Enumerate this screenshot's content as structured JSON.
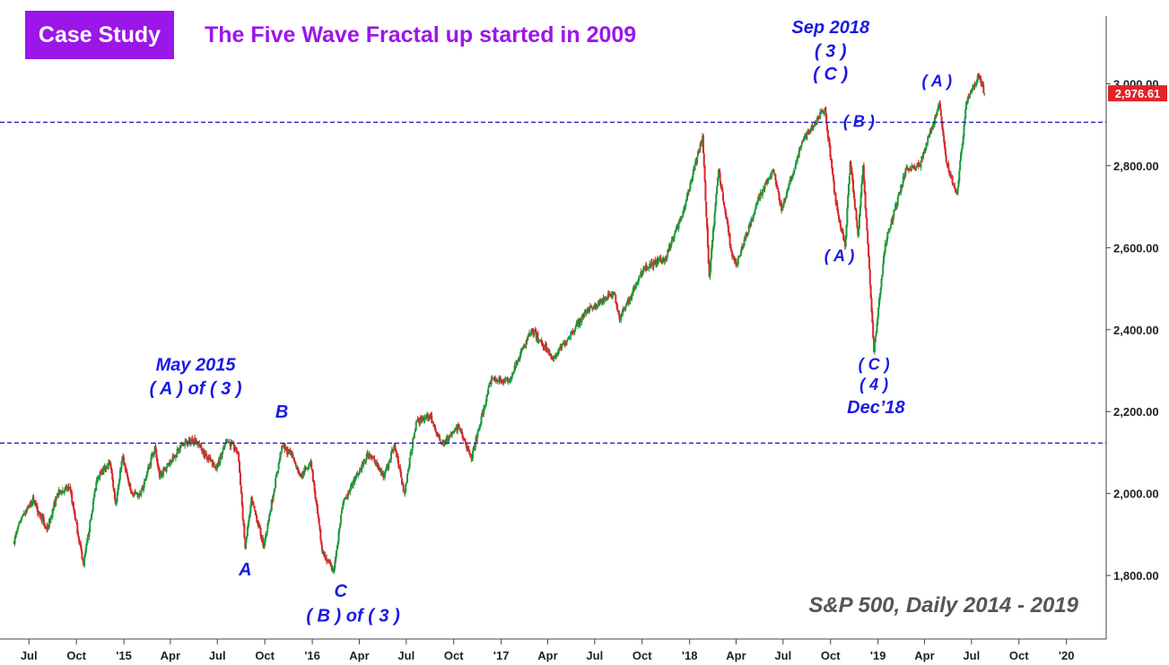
{
  "header": {
    "badge": "Case Study",
    "title": "The Five Wave Fractal up started in 2009"
  },
  "caption": "S&P 500, Daily 2014 - 2019",
  "last_price": "2,976.61",
  "colors": {
    "up": "#1a9a3a",
    "down": "#d8262a",
    "wave_label": "#1a1ae6",
    "accent": "#9b16e8",
    "price_tag": "#e0242a",
    "hline": "#2020c0"
  },
  "chart_data": {
    "type": "line",
    "title": "",
    "series": [
      {
        "values_points": [
          [
            "2014-06-01",
            1880
          ],
          [
            "2014-06-20",
            1950
          ],
          [
            "2014-07-10",
            1985
          ],
          [
            "2014-08-05",
            1910
          ],
          [
            "2014-08-25",
            2000
          ],
          [
            "2014-09-18",
            2015
          ],
          [
            "2014-10-15",
            1825
          ],
          [
            "2014-11-10",
            2040
          ],
          [
            "2014-12-05",
            2075
          ],
          [
            "2014-12-16",
            1975
          ],
          [
            "2014-12-29",
            2090
          ],
          [
            "2015-01-15",
            2000
          ],
          [
            "2015-02-02",
            1995
          ],
          [
            "2015-03-02",
            2115
          ],
          [
            "2015-03-11",
            2040
          ],
          [
            "2015-04-01",
            2080
          ],
          [
            "2015-04-25",
            2120
          ],
          [
            "2015-05-20",
            2132
          ],
          [
            "2015-06-10",
            2090
          ],
          [
            "2015-06-29",
            2060
          ],
          [
            "2015-07-20",
            2130
          ],
          [
            "2015-08-10",
            2100
          ],
          [
            "2015-08-24",
            1867
          ],
          [
            "2015-09-05",
            1990
          ],
          [
            "2015-09-29",
            1872
          ],
          [
            "2015-11-03",
            2116
          ],
          [
            "2015-11-25",
            2090
          ],
          [
            "2015-12-10",
            2040
          ],
          [
            "2015-12-29",
            2080
          ],
          [
            "2016-01-20",
            1860
          ],
          [
            "2016-02-11",
            1810
          ],
          [
            "2016-03-01",
            1980
          ],
          [
            "2016-04-20",
            2100
          ],
          [
            "2016-05-19",
            2040
          ],
          [
            "2016-06-08",
            2120
          ],
          [
            "2016-06-27",
            2000
          ],
          [
            "2016-07-20",
            2175
          ],
          [
            "2016-08-15",
            2190
          ],
          [
            "2016-09-09",
            2120
          ],
          [
            "2016-10-10",
            2165
          ],
          [
            "2016-11-04",
            2085
          ],
          [
            "2016-12-13",
            2280
          ],
          [
            "2017-01-15",
            2275
          ],
          [
            "2017-03-01",
            2400
          ],
          [
            "2017-04-13",
            2330
          ],
          [
            "2017-06-15",
            2445
          ],
          [
            "2017-08-08",
            2490
          ],
          [
            "2017-08-18",
            2425
          ],
          [
            "2017-10-05",
            2550
          ],
          [
            "2017-11-15",
            2575
          ],
          [
            "2017-12-20",
            2690
          ],
          [
            "2018-01-26",
            2872
          ],
          [
            "2018-02-08",
            2530
          ],
          [
            "2018-02-26",
            2790
          ],
          [
            "2018-03-23",
            2590
          ],
          [
            "2018-04-02",
            2560
          ],
          [
            "2018-05-15",
            2720
          ],
          [
            "2018-06-12",
            2790
          ],
          [
            "2018-06-28",
            2690
          ],
          [
            "2018-08-07",
            2860
          ],
          [
            "2018-09-20",
            2940
          ],
          [
            "2018-10-11",
            2710
          ],
          [
            "2018-10-29",
            2603
          ],
          [
            "2018-11-08",
            2810
          ],
          [
            "2018-11-23",
            2630
          ],
          [
            "2018-12-03",
            2800
          ],
          [
            "2018-12-24",
            2346
          ],
          [
            "2019-01-15",
            2610
          ],
          [
            "2019-02-25",
            2795
          ],
          [
            "2019-03-22",
            2800
          ],
          [
            "2019-04-30",
            2950
          ],
          [
            "2019-05-13",
            2810
          ],
          [
            "2019-06-03",
            2730
          ],
          [
            "2019-06-21",
            2955
          ],
          [
            "2019-07-15",
            3020
          ],
          [
            "2019-07-26",
            2976.61
          ]
        ]
      }
    ],
    "ylim": [
      1645,
      3165
    ],
    "xlim": [
      "2014-05-06",
      "2020-03-18"
    ],
    "x_ticks": [
      "Jul",
      "Oct",
      "'15",
      "Apr",
      "Jul",
      "Oct",
      "'16",
      "Apr",
      "Jul",
      "Oct",
      "'17",
      "Apr",
      "Jul",
      "Oct",
      "'18",
      "Apr",
      "Jul",
      "Oct",
      "'19",
      "Apr",
      "Jul",
      "Oct",
      "'20"
    ],
    "x_tick_dates": [
      "2014-07-01",
      "2014-10-01",
      "2015-01-01",
      "2015-04-01",
      "2015-07-01",
      "2015-10-01",
      "2016-01-01",
      "2016-04-01",
      "2016-07-01",
      "2016-10-01",
      "2017-01-01",
      "2017-04-01",
      "2017-07-01",
      "2017-10-01",
      "2018-01-01",
      "2018-04-01",
      "2018-07-01",
      "2018-10-01",
      "2019-01-01",
      "2019-04-01",
      "2019-07-01",
      "2019-10-01",
      "2020-01-01"
    ],
    "y_ticks": [
      "1,800.00",
      "2,000.00",
      "2,200.00",
      "2,400.00",
      "2,600.00",
      "2,800.00",
      "3,000.00"
    ],
    "y_tick_values": [
      1800,
      2000,
      2200,
      2400,
      2600,
      2800,
      3000
    ],
    "hlines": [
      2906,
      2123
    ],
    "grid": false
  },
  "annotations": [
    {
      "text": "May 2015",
      "date": "2015-05-20",
      "price": 2300,
      "size": 20
    },
    {
      "text": "( A ) of ( 3 )",
      "date": "2015-05-20",
      "price": 2242,
      "size": 20
    },
    {
      "text": "B",
      "date": "2015-11-03",
      "price": 2185,
      "size": 20
    },
    {
      "text": "A",
      "date": "2015-08-24",
      "price": 1800,
      "size": 20
    },
    {
      "text": "C",
      "date": "2016-02-25",
      "price": 1748,
      "size": 20
    },
    {
      "text": "( B ) of ( 3 )",
      "date": "2016-03-20",
      "price": 1688,
      "size": 20
    },
    {
      "text": "Sep 2018",
      "date": "2018-10-01",
      "price": 3123,
      "size": 20
    },
    {
      "text": "( 3 )",
      "date": "2018-10-01",
      "price": 3066,
      "size": 20
    },
    {
      "text": "( C )",
      "date": "2018-10-01",
      "price": 3010,
      "size": 20
    },
    {
      "text": "( B )",
      "date": "2018-11-25",
      "price": 2895,
      "size": 18
    },
    {
      "text": "( A )",
      "date": "2018-10-18",
      "price": 2567,
      "size": 18
    },
    {
      "text": "( C )",
      "date": "2018-12-24",
      "price": 2302,
      "size": 18
    },
    {
      "text": "( 4 )",
      "date": "2018-12-24",
      "price": 2253,
      "size": 18
    },
    {
      "text": "Dec’18",
      "date": "2018-12-28",
      "price": 2196,
      "size": 20
    },
    {
      "text": "( A )",
      "date": "2019-04-25",
      "price": 2993,
      "size": 18
    }
  ]
}
